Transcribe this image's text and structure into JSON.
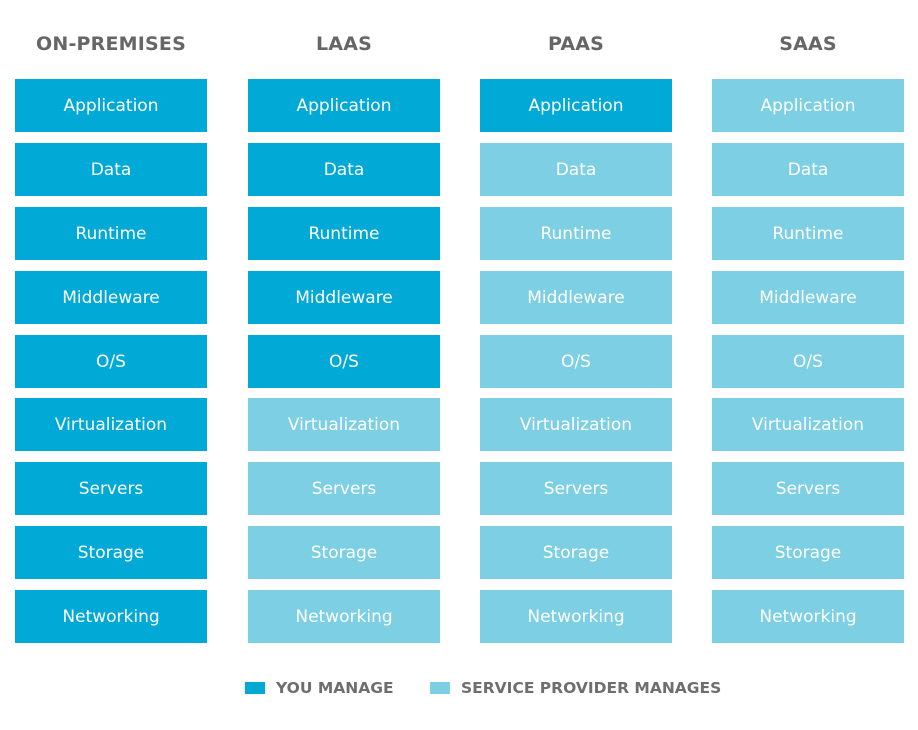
{
  "colors": {
    "you_manage": "#00a9d6",
    "provider_manages": "#7dcfe3",
    "title_text": "#666666",
    "legend_text": "#6e6e6e"
  },
  "columns": [
    {
      "title": "ON-PREMISES",
      "layers": [
        {
          "label": "Application",
          "managed_by": "you"
        },
        {
          "label": "Data",
          "managed_by": "you"
        },
        {
          "label": "Runtime",
          "managed_by": "you"
        },
        {
          "label": "Middleware",
          "managed_by": "you"
        },
        {
          "label": "O/S",
          "managed_by": "you"
        },
        {
          "label": "Virtualization",
          "managed_by": "you"
        },
        {
          "label": "Servers",
          "managed_by": "you"
        },
        {
          "label": "Storage",
          "managed_by": "you"
        },
        {
          "label": "Networking",
          "managed_by": "you"
        }
      ]
    },
    {
      "title": "LAAS",
      "layers": [
        {
          "label": "Application",
          "managed_by": "you"
        },
        {
          "label": "Data",
          "managed_by": "you"
        },
        {
          "label": "Runtime",
          "managed_by": "you"
        },
        {
          "label": "Middleware",
          "managed_by": "you"
        },
        {
          "label": "O/S",
          "managed_by": "you"
        },
        {
          "label": "Virtualization",
          "managed_by": "provider"
        },
        {
          "label": "Servers",
          "managed_by": "provider"
        },
        {
          "label": "Storage",
          "managed_by": "provider"
        },
        {
          "label": "Networking",
          "managed_by": "provider"
        }
      ]
    },
    {
      "title": "PAAS",
      "layers": [
        {
          "label": "Application",
          "managed_by": "you"
        },
        {
          "label": "Data",
          "managed_by": "provider"
        },
        {
          "label": "Runtime",
          "managed_by": "provider"
        },
        {
          "label": "Middleware",
          "managed_by": "provider"
        },
        {
          "label": "O/S",
          "managed_by": "provider"
        },
        {
          "label": "Virtualization",
          "managed_by": "provider"
        },
        {
          "label": "Servers",
          "managed_by": "provider"
        },
        {
          "label": "Storage",
          "managed_by": "provider"
        },
        {
          "label": "Networking",
          "managed_by": "provider"
        }
      ]
    },
    {
      "title": "SAAS",
      "layers": [
        {
          "label": "Application",
          "managed_by": "provider"
        },
        {
          "label": "Data",
          "managed_by": "provider"
        },
        {
          "label": "Runtime",
          "managed_by": "provider"
        },
        {
          "label": "Middleware",
          "managed_by": "provider"
        },
        {
          "label": "O/S",
          "managed_by": "provider"
        },
        {
          "label": "Virtualization",
          "managed_by": "provider"
        },
        {
          "label": "Servers",
          "managed_by": "provider"
        },
        {
          "label": "Storage",
          "managed_by": "provider"
        },
        {
          "label": "Networking",
          "managed_by": "provider"
        }
      ]
    }
  ],
  "legend": {
    "you_manage": "YOU MANAGE",
    "provider_manages": "SERVICE PROVIDER MANAGES"
  }
}
